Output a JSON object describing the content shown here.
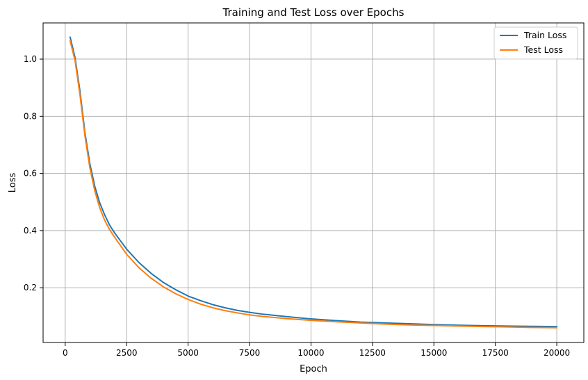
{
  "chart_data": {
    "type": "line",
    "title": "Training and Test Loss over Epochs",
    "xlabel": "Epoch",
    "ylabel": "Loss",
    "xlim": [
      -900,
      21100
    ],
    "ylim": [
      0.0085,
      1.1265
    ],
    "xticks": [
      0,
      2500,
      5000,
      7500,
      10000,
      12500,
      15000,
      17500,
      20000
    ],
    "yticks": [
      0.2,
      0.4,
      0.6,
      0.8,
      1.0
    ],
    "xtick_labels": [
      "0",
      "2500",
      "5000",
      "7500",
      "10000",
      "12500",
      "15000",
      "17500",
      "20000"
    ],
    "ytick_labels": [
      "0.2",
      "0.4",
      "0.6",
      "0.8",
      "1.0"
    ],
    "grid": true,
    "legend_position": "top-right",
    "series": [
      {
        "name": "Train Loss",
        "color": "#1f77b4",
        "x": [
          200,
          400,
          600,
          800,
          1000,
          1200,
          1400,
          1600,
          1800,
          2000,
          2500,
          3000,
          3500,
          4000,
          4500,
          5000,
          5500,
          6000,
          6500,
          7000,
          7500,
          8000,
          9000,
          10000,
          11000,
          12000,
          13000,
          14000,
          15000,
          16000,
          17000,
          18000,
          19000,
          20000
        ],
        "values": [
          1.077,
          1.005,
          0.888,
          0.744,
          0.635,
          0.556,
          0.498,
          0.456,
          0.42,
          0.393,
          0.335,
          0.288,
          0.25,
          0.218,
          0.193,
          0.171,
          0.155,
          0.141,
          0.13,
          0.121,
          0.114,
          0.108,
          0.099,
          0.091,
          0.085,
          0.08,
          0.077,
          0.074,
          0.071,
          0.069,
          0.067,
          0.066,
          0.065,
          0.064
        ]
      },
      {
        "name": "Test Loss",
        "color": "#ff7f0e",
        "x": [
          200,
          400,
          600,
          800,
          1000,
          1200,
          1400,
          1600,
          1800,
          2000,
          2500,
          3000,
          3500,
          4000,
          4500,
          5000,
          5500,
          6000,
          6500,
          7000,
          7500,
          8000,
          9000,
          10000,
          11000,
          12000,
          13000,
          14000,
          15000,
          16000,
          17000,
          18000,
          19000,
          20000
        ],
        "values": [
          1.064,
          0.995,
          0.875,
          0.733,
          0.621,
          0.54,
          0.481,
          0.437,
          0.404,
          0.378,
          0.317,
          0.27,
          0.233,
          0.203,
          0.179,
          0.159,
          0.143,
          0.13,
          0.12,
          0.112,
          0.105,
          0.1,
          0.092,
          0.086,
          0.081,
          0.077,
          0.073,
          0.07,
          0.068,
          0.066,
          0.064,
          0.063,
          0.061,
          0.06
        ]
      }
    ]
  }
}
